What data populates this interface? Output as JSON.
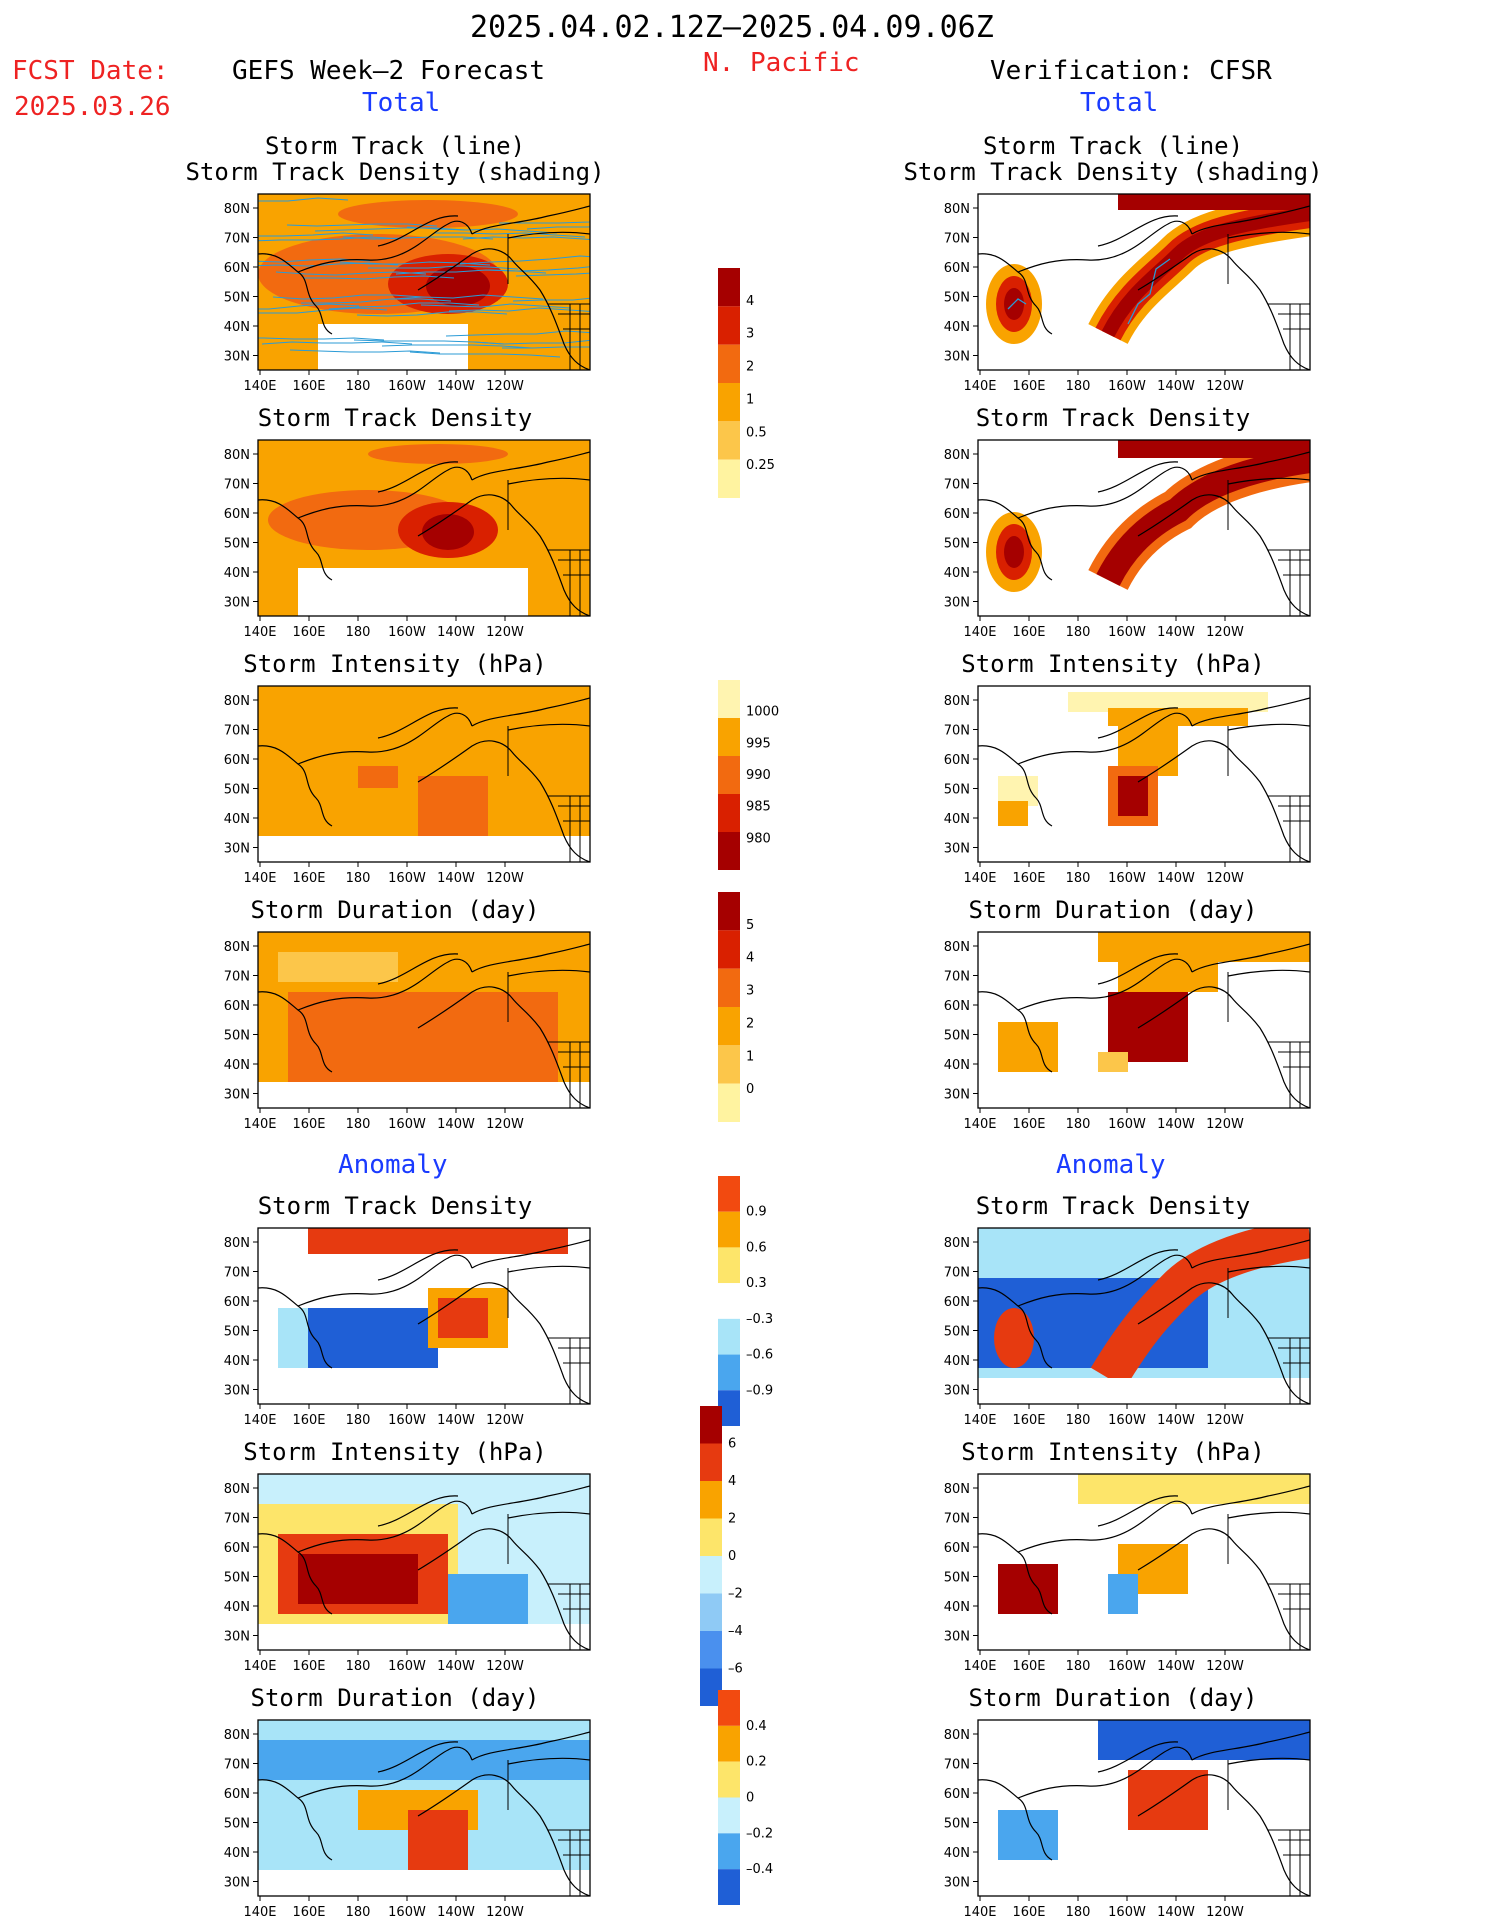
{
  "header": {
    "date_range": "2025.04.02.12Z–2025.04.09.06Z",
    "region": "N. Pacific",
    "fcst_label": "FCST Date:",
    "fcst_date": "2025.03.26",
    "left_title": "GEFS Week–2 Forecast",
    "right_title": "Verification: CFSR",
    "total_label": "Total",
    "anomaly_label": "Anomaly"
  },
  "axes": {
    "lat_ticks": [
      "80N",
      "70N",
      "60N",
      "50N",
      "40N",
      "30N"
    ],
    "lon_ticks": [
      "140E",
      "160E",
      "180",
      "160W",
      "140W",
      "120W"
    ]
  },
  "colors": {
    "brand_red": "#ee2222",
    "brand_blue": "#1a3bff",
    "track_line": "#2b9bd6"
  },
  "panels": {
    "track_title_1": "Storm Track (line)",
    "track_title_2": "Storm Track Density (shading)",
    "density": "Storm Track Density",
    "intensity": "Storm Intensity (hPa)",
    "duration": "Storm Duration (day)"
  },
  "colorbars": {
    "density_total": {
      "labels": [
        "4",
        "3",
        "2",
        "1",
        "0.5",
        "0.25"
      ],
      "colors": [
        "#a50000",
        "#d92000",
        "#f26a10",
        "#f9a300",
        "#fcc64a",
        "#fff3a0"
      ]
    },
    "intensity_total": {
      "labels": [
        "1000",
        "995",
        "990",
        "985",
        "980"
      ],
      "colors": [
        "#fff4b0",
        "#f9a300",
        "#f26a10",
        "#d92000",
        "#a50000"
      ]
    },
    "duration_total": {
      "labels": [
        "5",
        "4",
        "3",
        "2",
        "1",
        "0"
      ],
      "colors": [
        "#a50000",
        "#d92000",
        "#f26a10",
        "#f9a300",
        "#fcc64a",
        "#fff3a0"
      ]
    },
    "density_anom": {
      "labels": [
        "0.9",
        "0.6",
        "0.3",
        "–0.3",
        "–0.6",
        "–0.9"
      ],
      "colors": [
        "#f24a10",
        "#f9a300",
        "#fde56a",
        "#ffffff",
        "#a8e4f8",
        "#4aa6ee",
        "#1f5fd6"
      ]
    },
    "intensity_anom": {
      "labels": [
        "6",
        "4",
        "2",
        "0",
        "–2",
        "–4",
        "–6"
      ],
      "colors": [
        "#a50000",
        "#e63a10",
        "#f9a300",
        "#fde56a",
        "#c8f0fc",
        "#8fcaf5",
        "#4a90ee",
        "#1f5fd6"
      ]
    },
    "duration_anom": {
      "labels": [
        "0.4",
        "0.2",
        "0",
        "–0.2",
        "–0.4"
      ],
      "colors": [
        "#f24a10",
        "#f9a300",
        "#fde56a",
        "#c8f0fc",
        "#4aa6ee",
        "#1f5fd6"
      ]
    }
  },
  "chart_data": [
    {
      "type": "heatmap",
      "title": "Storm Track (line) / Storm Track Density (shading)",
      "panel": "GEFS Week-2 Forecast Total",
      "colorbar": [
        0.25,
        0.5,
        1,
        2,
        3,
        4
      ]
    },
    {
      "type": "heatmap",
      "title": "Storm Track (line) / Storm Track Density (shading)",
      "panel": "Verification: CFSR Total",
      "colorbar": [
        0.25,
        0.5,
        1,
        2,
        3,
        4
      ]
    },
    {
      "type": "heatmap",
      "title": "Storm Track Density",
      "panel": "GEFS Week-2 Forecast Total",
      "colorbar": [
        0.25,
        0.5,
        1,
        2,
        3,
        4
      ]
    },
    {
      "type": "heatmap",
      "title": "Storm Track Density",
      "panel": "Verification: CFSR Total",
      "colorbar": [
        0.25,
        0.5,
        1,
        2,
        3,
        4
      ]
    },
    {
      "type": "heatmap",
      "title": "Storm Intensity (hPa)",
      "panel": "GEFS Week-2 Forecast Total",
      "colorbar": [
        980,
        985,
        990,
        995,
        1000
      ]
    },
    {
      "type": "heatmap",
      "title": "Storm Intensity (hPa)",
      "panel": "Verification: CFSR Total",
      "colorbar": [
        980,
        985,
        990,
        995,
        1000
      ]
    },
    {
      "type": "heatmap",
      "title": "Storm Duration (day)",
      "panel": "GEFS Week-2 Forecast Total",
      "colorbar": [
        0,
        1,
        2,
        3,
        4,
        5
      ]
    },
    {
      "type": "heatmap",
      "title": "Storm Duration (day)",
      "panel": "Verification: CFSR Total",
      "colorbar": [
        0,
        1,
        2,
        3,
        4,
        5
      ]
    },
    {
      "type": "heatmap",
      "title": "Storm Track Density",
      "panel": "GEFS Week-2 Forecast Anomaly",
      "colorbar": [
        -0.9,
        -0.6,
        -0.3,
        0.3,
        0.6,
        0.9
      ]
    },
    {
      "type": "heatmap",
      "title": "Storm Track Density",
      "panel": "Verification: CFSR Anomaly",
      "colorbar": [
        -0.9,
        -0.6,
        -0.3,
        0.3,
        0.6,
        0.9
      ]
    },
    {
      "type": "heatmap",
      "title": "Storm Intensity (hPa)",
      "panel": "GEFS Week-2 Forecast Anomaly",
      "colorbar": [
        -6,
        -4,
        -2,
        0,
        2,
        4,
        6
      ]
    },
    {
      "type": "heatmap",
      "title": "Storm Intensity (hPa)",
      "panel": "Verification: CFSR Anomaly",
      "colorbar": [
        -6,
        -4,
        -2,
        0,
        2,
        4,
        6
      ]
    },
    {
      "type": "heatmap",
      "title": "Storm Duration (day)",
      "panel": "GEFS Week-2 Forecast Anomaly",
      "colorbar": [
        -0.4,
        -0.2,
        0,
        0.2,
        0.4
      ]
    },
    {
      "type": "heatmap",
      "title": "Storm Duration (day)",
      "panel": "Verification: CFSR Anomaly",
      "colorbar": [
        -0.4,
        -0.2,
        0,
        0.2,
        0.4
      ]
    }
  ]
}
